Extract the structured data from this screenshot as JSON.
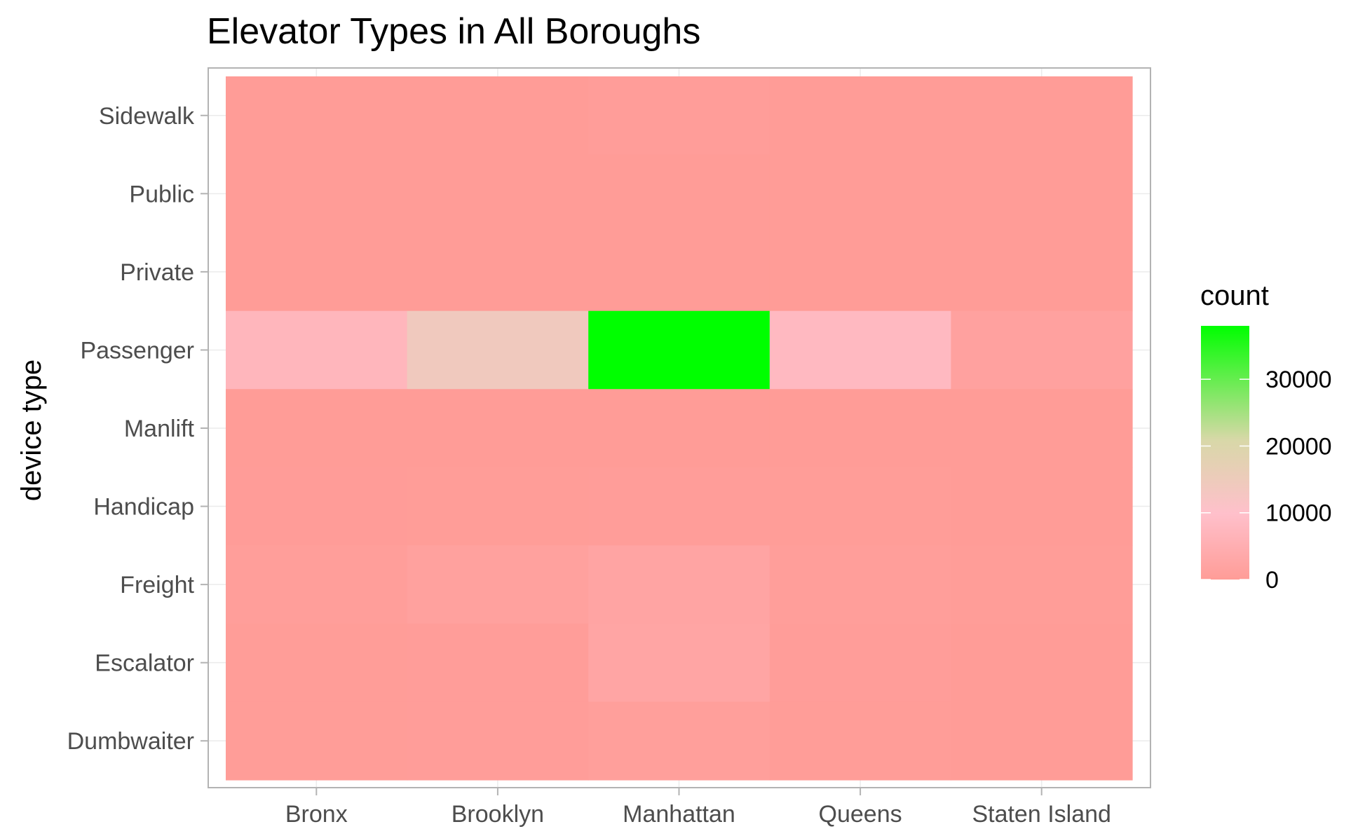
{
  "chart_data": {
    "type": "heatmap",
    "title": "Elevator Types in All Boroughs",
    "xlabel": "",
    "ylabel": "device type",
    "x_categories": [
      "Bronx",
      "Brooklyn",
      "Manhattan",
      "Queens",
      "Staten Island"
    ],
    "y_categories": [
      "Sidewalk",
      "Public",
      "Private",
      "Passenger",
      "Manlift",
      "Handicap",
      "Freight",
      "Escalator",
      "Dumbwaiter"
    ],
    "values": [
      [
        50,
        80,
        400,
        60,
        10
      ],
      [
        5,
        10,
        20,
        5,
        2
      ],
      [
        10,
        20,
        30,
        15,
        5
      ],
      [
        7000,
        14000,
        38000,
        8000,
        1500
      ],
      [
        5,
        10,
        20,
        10,
        5
      ],
      [
        100,
        200,
        300,
        150,
        50
      ],
      [
        500,
        1300,
        2200,
        600,
        150
      ],
      [
        200,
        400,
        2400,
        300,
        50
      ],
      [
        150,
        300,
        700,
        200,
        20
      ]
    ],
    "legend": {
      "title": "count",
      "ticks": [
        0,
        10000,
        20000,
        30000
      ],
      "range": [
        0,
        38000
      ],
      "color_low": "#FF9C97",
      "color_mid": "#FFC0CB",
      "color_high": "#00FF00",
      "placement": "right"
    },
    "grid": true
  }
}
